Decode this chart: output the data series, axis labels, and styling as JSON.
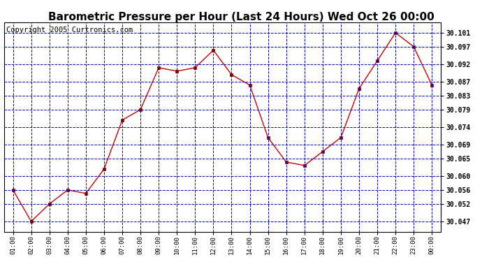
{
  "title": "Barometric Pressure per Hour (Last 24 Hours) Wed Oct 26 00:00",
  "copyright": "Copyright 2005 Curtronics.com",
  "x_labels": [
    "01:00",
    "02:00",
    "03:00",
    "04:00",
    "05:00",
    "06:00",
    "07:00",
    "08:00",
    "09:00",
    "10:00",
    "11:00",
    "12:00",
    "13:00",
    "14:00",
    "15:00",
    "16:00",
    "17:00",
    "18:00",
    "19:00",
    "20:00",
    "21:00",
    "22:00",
    "23:00",
    "00:00"
  ],
  "y_values": [
    30.056,
    30.047,
    30.052,
    30.056,
    30.055,
    30.062,
    30.076,
    30.079,
    30.091,
    30.09,
    30.091,
    30.096,
    30.089,
    30.086,
    30.071,
    30.064,
    30.063,
    30.067,
    30.071,
    30.085,
    30.093,
    30.101,
    30.097,
    30.086
  ],
  "ylim_min": 30.044,
  "ylim_max": 30.104,
  "y_ticks": [
    30.047,
    30.052,
    30.056,
    30.06,
    30.065,
    30.069,
    30.074,
    30.079,
    30.083,
    30.087,
    30.092,
    30.097,
    30.101
  ],
  "line_color": "#cc0000",
  "marker_color": "#880000",
  "bg_color": "#ffffff",
  "plot_bg_color": "#ffffff",
  "grid_color": "#0000cc",
  "title_fontsize": 11,
  "copyright_fontsize": 7.5
}
